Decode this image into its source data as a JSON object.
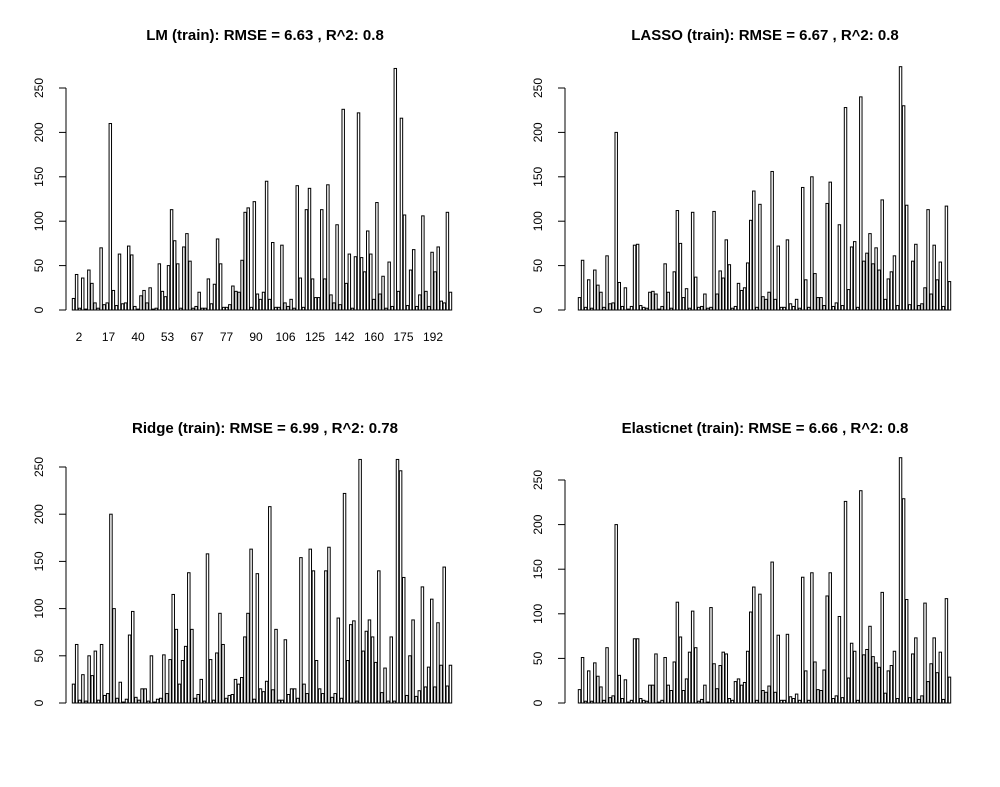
{
  "figure": {
    "background": "#ffffff",
    "bar_fill": "#ffffff",
    "bar_stroke": "#000000"
  },
  "chart_data": [
    {
      "type": "bar",
      "title": "LM (train): RMSE = 6.63 , R^2: 0.8",
      "xlabel": "",
      "ylabel": "",
      "ylim": [
        0,
        275
      ],
      "yticks": [
        0,
        50,
        100,
        150,
        200,
        250
      ],
      "xtick_labels": [
        "2",
        "17",
        "40",
        "53",
        "67",
        "77",
        "90",
        "106",
        "125",
        "142",
        "160",
        "175",
        "192"
      ],
      "values": [
        13,
        40,
        2,
        36,
        1,
        45,
        30,
        8,
        2,
        70,
        6,
        8,
        210,
        22,
        5,
        63,
        7,
        8,
        72,
        62,
        4,
        1,
        16,
        22,
        8,
        25,
        1,
        2,
        52,
        21,
        15,
        50,
        113,
        78,
        52,
        2,
        71,
        86,
        55,
        2,
        4,
        20,
        2,
        2,
        35,
        7,
        29,
        80,
        52,
        3,
        3,
        6,
        27,
        21,
        20,
        56,
        110,
        115,
        3,
        122,
        18,
        12,
        20,
        145,
        12,
        76,
        3,
        3,
        73,
        8,
        4,
        12,
        2,
        140,
        36,
        3,
        113,
        137,
        35,
        14,
        14,
        113,
        35,
        141,
        17,
        8,
        96,
        6,
        226,
        30,
        63,
        2,
        60,
        222,
        59,
        43,
        89,
        63,
        12,
        121,
        18,
        38,
        2,
        54,
        4,
        272,
        21,
        216,
        107,
        5,
        45,
        68,
        4,
        17,
        106,
        21,
        4,
        65,
        43,
        71,
        10,
        8,
        110,
        20
      ]
    },
    {
      "type": "bar",
      "title": "LASSO (train): RMSE = 6.67 , R^2: 0.8",
      "xlabel": "",
      "ylabel": "",
      "ylim": [
        0,
        275
      ],
      "yticks": [
        0,
        50,
        100,
        150,
        200,
        250
      ],
      "xtick_labels": [],
      "values": [
        14,
        56,
        3,
        34,
        2,
        45,
        28,
        20,
        3,
        61,
        7,
        8,
        200,
        31,
        4,
        25,
        1,
        4,
        73,
        74,
        5,
        3,
        2,
        20,
        21,
        18,
        1,
        4,
        52,
        20,
        2,
        43,
        112,
        75,
        14,
        24,
        2,
        110,
        37,
        3,
        4,
        18,
        2,
        3,
        111,
        18,
        44,
        36,
        79,
        51,
        2,
        4,
        30,
        22,
        25,
        53,
        101,
        134,
        3,
        119,
        15,
        12,
        20,
        156,
        12,
        72,
        3,
        3,
        79,
        7,
        4,
        12,
        2,
        138,
        34,
        3,
        150,
        41,
        14,
        14,
        5,
        120,
        144,
        4,
        8,
        96,
        5,
        228,
        23,
        71,
        77,
        3,
        240,
        55,
        64,
        86,
        52,
        70,
        45,
        124,
        12,
        35,
        43,
        61,
        5,
        274,
        230,
        118,
        6,
        55,
        74,
        5,
        7,
        25,
        113,
        18,
        73,
        34,
        54,
        4,
        117,
        32
      ]
    },
    {
      "type": "bar",
      "title": "Ridge (train): RMSE = 6.99 , R^2: 0.78",
      "xlabel": "",
      "ylabel": "",
      "ylim": [
        0,
        265
      ],
      "yticks": [
        0,
        50,
        100,
        150,
        200,
        250
      ],
      "xtick_labels": [],
      "values": [
        20,
        62,
        3,
        30,
        2,
        50,
        29,
        55,
        3,
        62,
        8,
        10,
        200,
        100,
        5,
        22,
        1,
        4,
        72,
        97,
        6,
        3,
        15,
        15,
        2,
        50,
        1,
        4,
        5,
        51,
        10,
        46,
        115,
        78,
        20,
        45,
        60,
        138,
        78,
        5,
        9,
        25,
        2,
        158,
        46,
        3,
        53,
        95,
        62,
        5,
        8,
        9,
        25,
        20,
        27,
        70,
        95,
        163,
        4,
        137,
        15,
        12,
        23,
        208,
        14,
        78,
        3,
        3,
        67,
        9,
        15,
        15,
        5,
        154,
        20,
        10,
        163,
        140,
        45,
        15,
        10,
        140,
        165,
        6,
        10,
        90,
        5,
        222,
        45,
        83,
        87,
        2,
        258,
        55,
        76,
        88,
        70,
        43,
        140,
        11,
        37,
        2,
        70,
        2,
        258,
        246,
        133,
        8,
        50,
        88,
        7,
        13,
        123,
        17,
        38,
        110,
        17,
        85,
        40,
        144,
        18,
        40
      ]
    },
    {
      "type": "bar",
      "title": "Elasticnet (train): RMSE = 6.66 , R^2: 0.8",
      "xlabel": "",
      "ylabel": "",
      "ylim": [
        0,
        275
      ],
      "yticks": [
        0,
        50,
        100,
        150,
        200,
        250
      ],
      "xtick_labels": [],
      "values": [
        15,
        51,
        2,
        36,
        2,
        45,
        30,
        18,
        3,
        62,
        6,
        8,
        200,
        31,
        5,
        26,
        1,
        3,
        72,
        72,
        5,
        3,
        2,
        20,
        20,
        55,
        1,
        3,
        51,
        20,
        14,
        46,
        113,
        74,
        14,
        27,
        57,
        103,
        62,
        2,
        4,
        20,
        1,
        107,
        44,
        16,
        42,
        57,
        55,
        5,
        3,
        24,
        27,
        20,
        23,
        58,
        102,
        130,
        3,
        122,
        14,
        12,
        19,
        158,
        12,
        76,
        3,
        3,
        77,
        7,
        5,
        10,
        3,
        141,
        36,
        3,
        146,
        46,
        15,
        14,
        37,
        120,
        146,
        5,
        8,
        97,
        6,
        226,
        28,
        67,
        58,
        3,
        238,
        54,
        60,
        86,
        52,
        45,
        40,
        124,
        11,
        36,
        42,
        58,
        5,
        275,
        229,
        116,
        6,
        55,
        73,
        4,
        8,
        112,
        24,
        44,
        73,
        34,
        57,
        4,
        117,
        29
      ]
    }
  ]
}
